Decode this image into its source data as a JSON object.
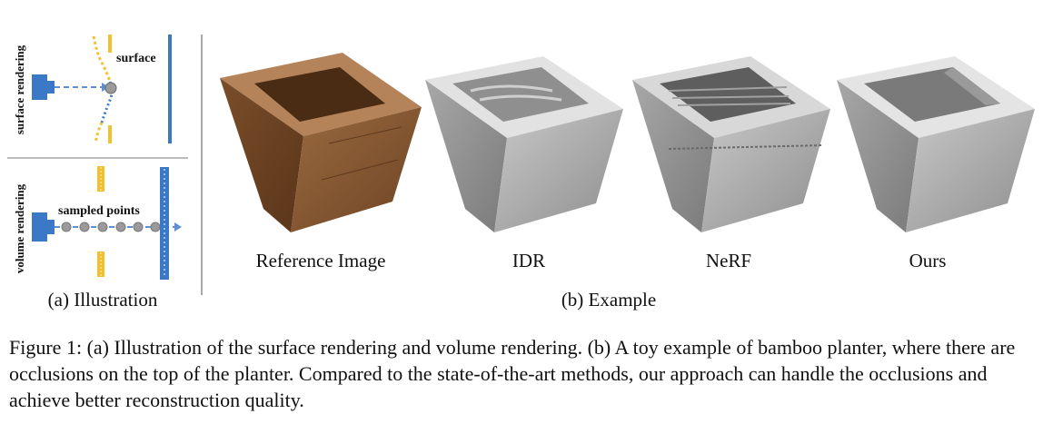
{
  "illustration": {
    "surface_rendering_label": "surface rendering",
    "surface_label": "surface",
    "volume_rendering_label": "volume rendering",
    "sampled_points_label": "sampled points",
    "caption": "(a) Illustration"
  },
  "example": {
    "images": [
      {
        "label": "Reference Image"
      },
      {
        "label": "IDR"
      },
      {
        "label": "NeRF"
      },
      {
        "label": "Ours"
      }
    ],
    "caption": "(b) Example"
  },
  "figure_caption": {
    "prefix": "Figure 1: ",
    "text": "(a) Illustration of the surface rendering and volume rendering. (b) A toy example of bamboo planter, where there are occlusions on the top of the planter. Compared to the state-of-the-art methods, our approach can handle the occlusions and achieve better reconstruction quality."
  },
  "colors": {
    "camera_blue": "#3b78c6",
    "surface_yellow": "#f2c12e",
    "ray_blue": "#5b8fd6",
    "point_gray": "#9a9a9a",
    "wood": "#8a5a32",
    "render_gray": "#b9b9b9"
  }
}
